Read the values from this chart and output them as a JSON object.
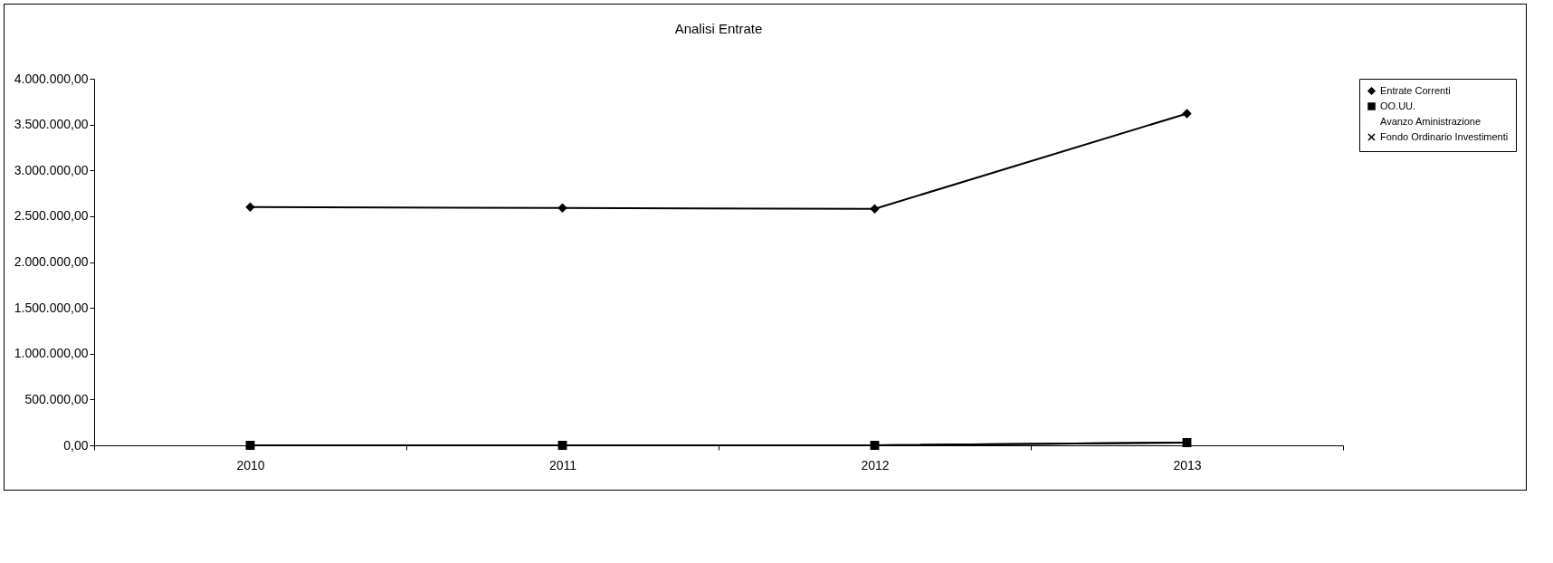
{
  "chart_data": {
    "type": "line",
    "title": "Analisi Entrate",
    "categories": [
      "2010",
      "2011",
      "2012",
      "2013"
    ],
    "series": [
      {
        "name": "Entrate Correnti",
        "color": "#000000",
        "marker": "diamond",
        "values": [
          2600000,
          2590000,
          2580000,
          3620000
        ]
      },
      {
        "name": "OO.UU.",
        "color": "#000000",
        "marker": "square",
        "values": [
          0,
          0,
          0,
          30000
        ]
      },
      {
        "name": "Avanzo Aministrazione",
        "marker": "none",
        "values": [
          null,
          null,
          null,
          null
        ]
      },
      {
        "name": "Fondo Ordinario Investimenti",
        "color": "#000000",
        "marker": "cross",
        "values": [
          0,
          0,
          0,
          30000
        ]
      }
    ],
    "ylim": [
      0,
      4000000
    ],
    "yticks": [
      {
        "value": 0,
        "label": "0,00"
      },
      {
        "value": 500000,
        "label": "500.000,00"
      },
      {
        "value": 1000000,
        "label": "1.000.000,00"
      },
      {
        "value": 1500000,
        "label": "1.500.000,00"
      },
      {
        "value": 2000000,
        "label": "2.000.000,00"
      },
      {
        "value": 2500000,
        "label": "2.500.000,00"
      },
      {
        "value": 3000000,
        "label": "3.000.000,00"
      },
      {
        "value": 3500000,
        "label": "3.500.000,00"
      },
      {
        "value": 4000000,
        "label": "4.000.000,00"
      }
    ],
    "grid": false,
    "legend": "right",
    "line_style": "solid"
  }
}
